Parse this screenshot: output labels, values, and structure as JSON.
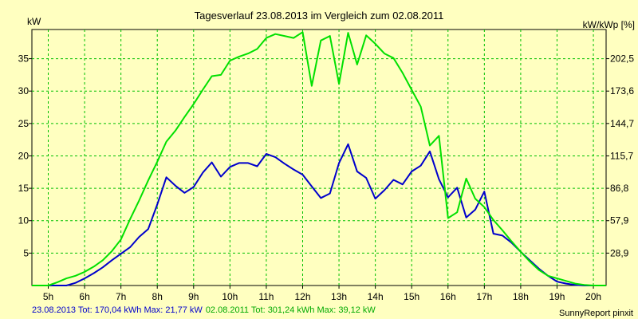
{
  "chart_data": {
    "type": "line",
    "title": "Tagesverlauf 23.08.2013 im Vergleich zum 02.08.2011",
    "ylabel_left": "kW",
    "ylabel_right": "kW/kWp [%]",
    "x_range": [
      4.55,
      20.35
    ],
    "ylim": [
      0,
      39.5
    ],
    "x_tick_values": [
      5,
      6,
      7,
      8,
      9,
      10,
      11,
      12,
      13,
      14,
      15,
      16,
      17,
      18,
      19,
      20
    ],
    "x_tick_labels": [
      "5h",
      "6h",
      "7h",
      "8h",
      "9h",
      "10h",
      "11h",
      "12h",
      "13h",
      "14h",
      "15h",
      "16h",
      "17h",
      "18h",
      "19h",
      "20h"
    ],
    "y_tick_values": [
      5,
      10,
      15,
      20,
      25,
      30,
      35
    ],
    "y_left_tick_labels": [
      "5",
      "10",
      "15",
      "20",
      "25",
      "30",
      "35"
    ],
    "y_right_tick_labels": [
      "28,9",
      "57,9",
      "86,8",
      "115,7",
      "144,7",
      "173,6",
      "202,5"
    ],
    "grid": true,
    "background_color": "#ffffc0",
    "grid_color": "#00c000",
    "series": [
      {
        "color": "#0000cc",
        "x": [
          5.0,
          5.25,
          5.5,
          5.75,
          6.0,
          6.25,
          6.5,
          6.75,
          7.0,
          7.25,
          7.5,
          7.75,
          8.0,
          8.25,
          8.5,
          8.75,
          9.0,
          9.25,
          9.5,
          9.75,
          10.0,
          10.25,
          10.5,
          10.75,
          11.0,
          11.25,
          11.5,
          11.75,
          12.0,
          12.25,
          12.5,
          12.75,
          13.0,
          13.25,
          13.5,
          13.75,
          14.0,
          14.25,
          14.5,
          14.75,
          15.0,
          15.25,
          15.5,
          15.75,
          16.0,
          16.25,
          16.5,
          16.75,
          17.0,
          17.25,
          17.5,
          17.75,
          18.0,
          18.25,
          18.5,
          18.75,
          19.0,
          19.25,
          19.5,
          19.75,
          20.0
        ],
        "y": [
          0,
          0,
          0,
          0.4,
          1.1,
          1.9,
          2.8,
          3.9,
          4.9,
          5.9,
          7.5,
          8.7,
          12.5,
          16.7,
          15.4,
          14.3,
          15.2,
          17.4,
          19.0,
          16.8,
          18.3,
          18.9,
          18.9,
          18.4,
          20.3,
          19.8,
          18.8,
          17.9,
          17.1,
          15.3,
          13.5,
          14.2,
          18.9,
          21.8,
          17.6,
          16.6,
          13.4,
          14.7,
          16.3,
          15.6,
          17.6,
          18.5,
          20.7,
          16.4,
          13.6,
          15.1,
          10.5,
          11.7,
          14.5,
          8.0,
          7.7,
          6.6,
          5.2,
          3.9,
          2.6,
          1.5,
          0.6,
          0.3,
          0.1,
          0,
          0
        ]
      },
      {
        "color": "#00e000",
        "x": [
          4.55,
          5.0,
          5.25,
          5.5,
          5.75,
          6.0,
          6.25,
          6.5,
          6.75,
          7.0,
          7.25,
          7.5,
          7.75,
          8.0,
          8.25,
          8.5,
          8.75,
          9.0,
          9.25,
          9.5,
          9.75,
          10.0,
          10.25,
          10.5,
          10.75,
          11.0,
          11.25,
          11.5,
          11.75,
          12.0,
          12.25,
          12.5,
          12.75,
          13.0,
          13.25,
          13.5,
          13.75,
          14.0,
          14.25,
          14.5,
          14.75,
          15.0,
          15.25,
          15.5,
          15.75,
          16.0,
          16.25,
          16.5,
          16.75,
          17.0,
          17.25,
          17.5,
          17.75,
          18.0,
          18.25,
          18.5,
          18.75,
          19.0,
          19.25,
          19.5,
          19.75,
          20.0,
          20.35
        ],
        "y": [
          0,
          0,
          0.5,
          1.1,
          1.5,
          2.1,
          2.9,
          3.9,
          5.3,
          7.1,
          10.2,
          13.1,
          16.2,
          19.1,
          22.2,
          23.9,
          26.0,
          28.0,
          30.2,
          32.3,
          32.5,
          34.7,
          35.3,
          35.8,
          36.5,
          38.2,
          38.8,
          38.5,
          38.2,
          39.1,
          30.8,
          37.8,
          38.5,
          31.1,
          39.0,
          34.1,
          38.6,
          37.3,
          35.8,
          35.1,
          32.8,
          30.2,
          27.6,
          21.6,
          23.1,
          10.4,
          11.3,
          16.5,
          13.4,
          12.1,
          10.1,
          8.5,
          6.8,
          5.2,
          3.7,
          2.4,
          1.5,
          1.1,
          0.7,
          0.3,
          0.1,
          0,
          0
        ]
      }
    ],
    "footer_series_1": "23.08.2013 Tot: 170,04 kWh Max: 21,77 kW",
    "footer_series_2": "02.08.2011 Tot: 301,24 kWh Max: 39,12 kW",
    "credit": "SunnyReport pinxit"
  }
}
